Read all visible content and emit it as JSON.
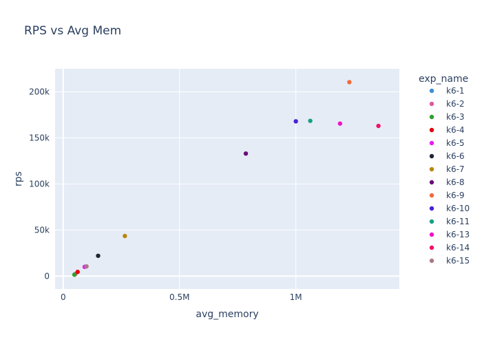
{
  "chart_data": {
    "type": "scatter",
    "title": "RPS vs Avg Mem",
    "xlabel": "avg_memory",
    "ylabel": "rps",
    "xlim": [
      -35000,
      1445000
    ],
    "ylim": [
      -14000,
      225000
    ],
    "x_ticks": [
      {
        "value": 0,
        "label": "0"
      },
      {
        "value": 500000,
        "label": "0.5M"
      },
      {
        "value": 1000000,
        "label": "1M"
      }
    ],
    "y_ticks": [
      {
        "value": 0,
        "label": "0"
      },
      {
        "value": 50000,
        "label": "50k"
      },
      {
        "value": 100000,
        "label": "100k"
      },
      {
        "value": 150000,
        "label": "150k"
      },
      {
        "value": 200000,
        "label": "200k"
      }
    ],
    "grid": true,
    "legend": {
      "title": "exp_name",
      "position": "right"
    },
    "series": [
      {
        "name": "k6-1",
        "color": "#3b8fd6",
        "points": [
          {
            "x": 50000,
            "y": 2000
          }
        ]
      },
      {
        "name": "k6-2",
        "color": "#e0579c",
        "points": [
          {
            "x": 52000,
            "y": 2200
          }
        ]
      },
      {
        "name": "k6-3",
        "color": "#2ca02c",
        "points": [
          {
            "x": 48000,
            "y": 1500
          }
        ]
      },
      {
        "name": "k6-4",
        "color": "#e4000f",
        "points": [
          {
            "x": 62000,
            "y": 4500
          }
        ]
      },
      {
        "name": "k6-5",
        "color": "#e81cf0",
        "points": [
          {
            "x": 92000,
            "y": 10000
          }
        ]
      },
      {
        "name": "k6-6",
        "color": "#1f2433",
        "points": [
          {
            "x": 150000,
            "y": 22000
          }
        ]
      },
      {
        "name": "k6-7",
        "color": "#b8860b",
        "points": [
          {
            "x": 265000,
            "y": 43500
          }
        ]
      },
      {
        "name": "k6-8",
        "color": "#6a0d7a",
        "points": [
          {
            "x": 785000,
            "y": 133000
          }
        ]
      },
      {
        "name": "k6-9",
        "color": "#ef6a3a",
        "points": [
          {
            "x": 1230000,
            "y": 210500
          }
        ]
      },
      {
        "name": "k6-10",
        "color": "#4a1fd6",
        "points": [
          {
            "x": 1000000,
            "y": 168000
          }
        ]
      },
      {
        "name": "k6-11",
        "color": "#16a085",
        "points": [
          {
            "x": 1062000,
            "y": 168500
          }
        ]
      },
      {
        "name": "k6-13",
        "color": "#f012c8",
        "points": [
          {
            "x": 1190000,
            "y": 165500
          }
        ]
      },
      {
        "name": "k6-14",
        "color": "#f0106a",
        "points": [
          {
            "x": 1355000,
            "y": 163000
          }
        ]
      },
      {
        "name": "k6-15",
        "color": "#a97a85",
        "points": [
          {
            "x": 100000,
            "y": 10500
          }
        ]
      }
    ]
  }
}
